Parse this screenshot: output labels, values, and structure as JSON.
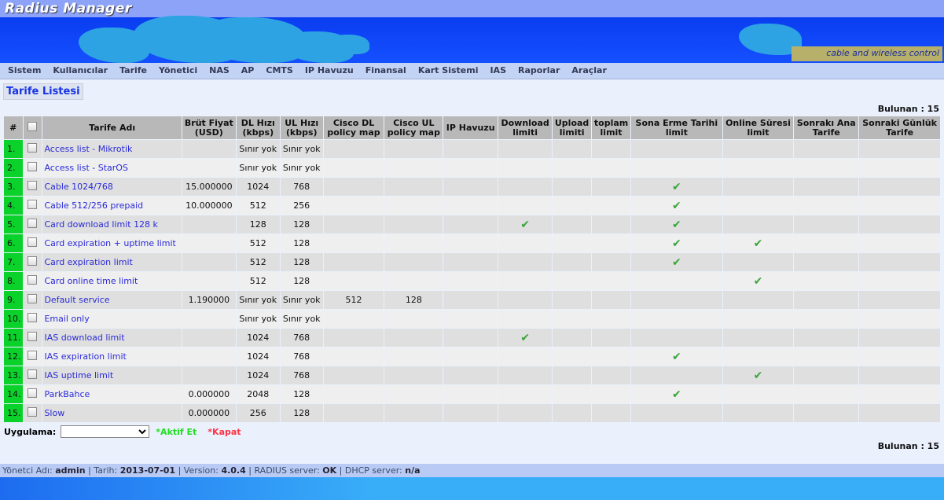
{
  "app": {
    "logo": "Radius Manager",
    "tagline": "cable and wireless control"
  },
  "menu": [
    "Sistem",
    "Kullanıcılar",
    "Tarife",
    "Yönetici",
    "NAS",
    "AP",
    "CMTS",
    "IP Havuzu",
    "Finansal",
    "Kart Sistemi",
    "IAS",
    "Raporlar",
    "Araçlar"
  ],
  "page_title": "Tarife Listesi",
  "found": "Bulunan : 15",
  "table": {
    "headers": [
      "#",
      "",
      "Tarife Adı",
      "Brüt Fiyat (USD)",
      "DL Hızı (kbps)",
      "UL Hızı (kbps)",
      "Cisco DL policy map",
      "Cisco UL policy map",
      "IP Havuzu",
      "Download limiti",
      "Upload limiti",
      "toplam limit",
      "Sona Erme Tarihi limit",
      "Online Süresi limit",
      "Sonrakı Ana Tarife",
      "Sonraki Günlük Tarife"
    ],
    "rows": [
      {
        "n": "1.",
        "name": "Access list - Mikrotik",
        "price": "",
        "dl": "Sınır yok",
        "ul": "Sınır yok",
        "cdl": "",
        "cul": "",
        "dlim": false,
        "exp": false,
        "onl": false
      },
      {
        "n": "2.",
        "name": "Access list - StarOS",
        "price": "",
        "dl": "Sınır yok",
        "ul": "Sınır yok",
        "cdl": "",
        "cul": "",
        "dlim": false,
        "exp": false,
        "onl": false
      },
      {
        "n": "3.",
        "name": "Cable 1024/768",
        "price": "15.000000",
        "dl": "1024",
        "ul": "768",
        "cdl": "",
        "cul": "",
        "dlim": false,
        "exp": true,
        "onl": false
      },
      {
        "n": "4.",
        "name": "Cable 512/256 prepaid",
        "price": "10.000000",
        "dl": "512",
        "ul": "256",
        "cdl": "",
        "cul": "",
        "dlim": false,
        "exp": true,
        "onl": false
      },
      {
        "n": "5.",
        "name": "Card download limit 128 k",
        "price": "",
        "dl": "128",
        "ul": "128",
        "cdl": "",
        "cul": "",
        "dlim": true,
        "exp": true,
        "onl": false
      },
      {
        "n": "6.",
        "name": "Card expiration + uptime limit",
        "price": "",
        "dl": "512",
        "ul": "128",
        "cdl": "",
        "cul": "",
        "dlim": false,
        "exp": true,
        "onl": true
      },
      {
        "n": "7.",
        "name": "Card expiration limit",
        "price": "",
        "dl": "512",
        "ul": "128",
        "cdl": "",
        "cul": "",
        "dlim": false,
        "exp": true,
        "onl": false
      },
      {
        "n": "8.",
        "name": "Card online time limit",
        "price": "",
        "dl": "512",
        "ul": "128",
        "cdl": "",
        "cul": "",
        "dlim": false,
        "exp": false,
        "onl": true
      },
      {
        "n": "9.",
        "name": "Default service",
        "price": "1.190000",
        "dl": "Sınır yok",
        "ul": "Sınır yok",
        "cdl": "512",
        "cul": "128",
        "dlim": false,
        "exp": false,
        "onl": false
      },
      {
        "n": "10.",
        "name": "Email only",
        "price": "",
        "dl": "Sınır yok",
        "ul": "Sınır yok",
        "cdl": "",
        "cul": "",
        "dlim": false,
        "exp": false,
        "onl": false
      },
      {
        "n": "11.",
        "name": "IAS download limit",
        "price": "",
        "dl": "1024",
        "ul": "768",
        "cdl": "",
        "cul": "",
        "dlim": true,
        "exp": false,
        "onl": false
      },
      {
        "n": "12.",
        "name": "IAS expiration limit",
        "price": "",
        "dl": "1024",
        "ul": "768",
        "cdl": "",
        "cul": "",
        "dlim": false,
        "exp": true,
        "onl": false
      },
      {
        "n": "13.",
        "name": "IAS uptime limit",
        "price": "",
        "dl": "1024",
        "ul": "768",
        "cdl": "",
        "cul": "",
        "dlim": false,
        "exp": false,
        "onl": true
      },
      {
        "n": "14.",
        "name": "ParkBahce",
        "price": "0.000000",
        "dl": "2048",
        "ul": "128",
        "cdl": "",
        "cul": "",
        "dlim": false,
        "exp": true,
        "onl": false
      },
      {
        "n": "15.",
        "name": "Slow",
        "price": "0.000000",
        "dl": "256",
        "ul": "128",
        "cdl": "",
        "cul": "",
        "dlim": false,
        "exp": false,
        "onl": false
      }
    ]
  },
  "apply": {
    "label": "Uygulama:",
    "select_value": "",
    "activate": "*Aktif Et",
    "close": "*Kapat"
  },
  "status": {
    "admin_label": "Yönetci Adı:",
    "admin": "admin",
    "date_label": "Tarih:",
    "date": "2013-07-01",
    "version_label": "Version:",
    "version": "4.0.4",
    "radius_label": "RADIUS server:",
    "radius": "OK",
    "dhcp_label": "DHCP server:",
    "dhcp": "n/a"
  },
  "colors": {
    "activate": "#22dd22",
    "close": "#ff3344",
    "row_number_bg": "#0ad22a",
    "link": "#2a2ad8"
  }
}
